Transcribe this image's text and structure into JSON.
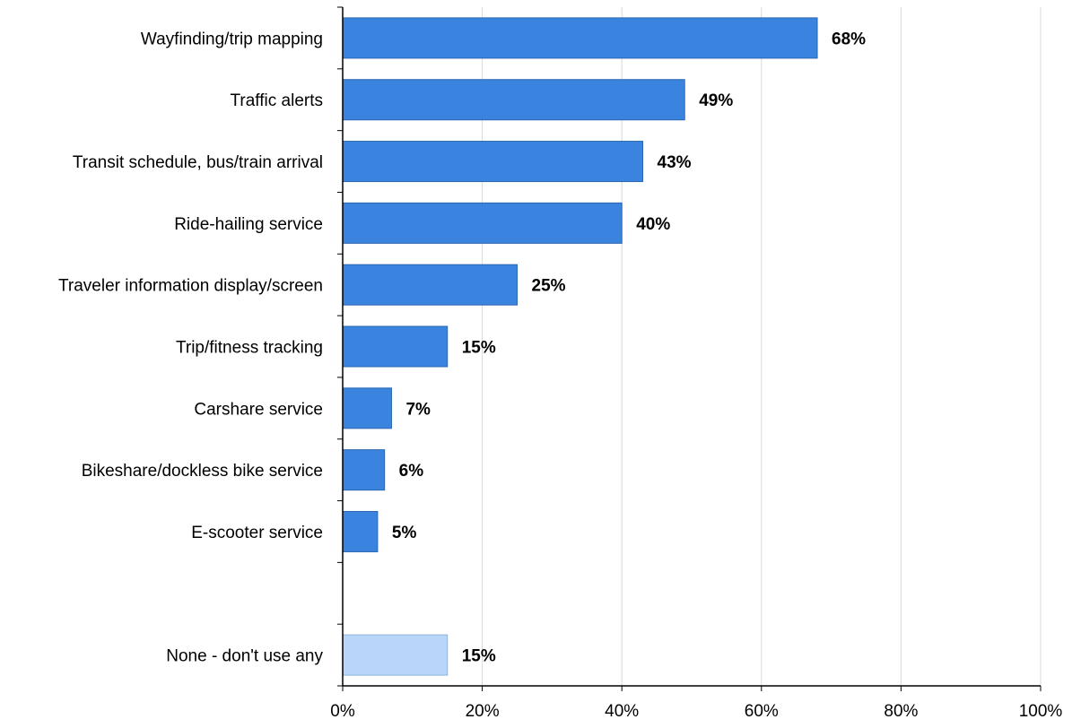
{
  "chart_data": {
    "type": "bar",
    "orientation": "horizontal",
    "categories": [
      "Wayfinding/trip mapping",
      "Traffic alerts",
      "Transit schedule, bus/train arrival",
      "Ride-hailing service",
      "Traveler information display/screen",
      "Trip/fitness tracking",
      "Carshare service",
      "Bikeshare/dockless bike service",
      "E-scooter service",
      "",
      "None - don't use any"
    ],
    "values": [
      68,
      49,
      43,
      40,
      25,
      15,
      7,
      6,
      5,
      null,
      15
    ],
    "value_labels": [
      "68%",
      "49%",
      "43%",
      "40%",
      "25%",
      "15%",
      "7%",
      "6%",
      "5%",
      "",
      "15%"
    ],
    "bar_colors": [
      "#3A84E0",
      "#3A84E0",
      "#3A84E0",
      "#3A84E0",
      "#3A84E0",
      "#3A84E0",
      "#3A84E0",
      "#3A84E0",
      "#3A84E0",
      "",
      "#B9D5F7"
    ],
    "xlim": [
      0,
      100
    ],
    "xticks": [
      0,
      20,
      40,
      60,
      80,
      100
    ],
    "xtick_labels": [
      "0%",
      "20%",
      "40%",
      "60%",
      "80%",
      "100%"
    ],
    "title": "",
    "xlabel": "",
    "ylabel": "",
    "grid": "vertical",
    "legend": "none"
  },
  "colors": {
    "bar": "#3A84E0",
    "bar_edge": "#2B66B0",
    "none_bar": "#B9D5F7",
    "none_bar_edge": "#8FB3DD",
    "grid": "#D9D9D9",
    "axis": "#000000"
  }
}
